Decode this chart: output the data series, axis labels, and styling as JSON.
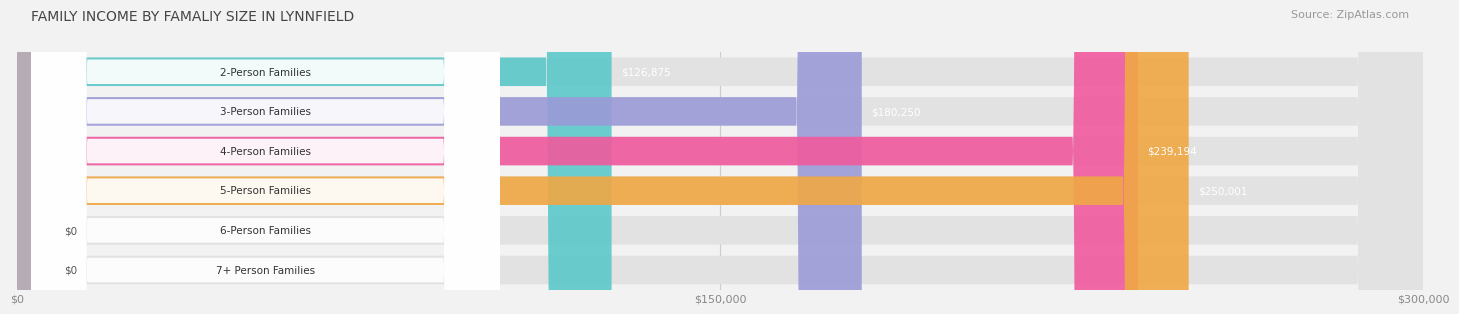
{
  "title": "FAMILY INCOME BY FAMALIY SIZE IN LYNNFIELD",
  "source": "Source: ZipAtlas.com",
  "categories": [
    "2-Person Families",
    "3-Person Families",
    "4-Person Families",
    "5-Person Families",
    "6-Person Families",
    "7+ Person Families"
  ],
  "values": [
    126875,
    180250,
    239194,
    250001,
    0,
    0
  ],
  "bar_colors": [
    "#5BC8C8",
    "#9B9BD8",
    "#F05A9E",
    "#F0A844",
    "#F09898",
    "#90B8E0"
  ],
  "value_labels": [
    "$126,875",
    "$180,250",
    "$239,194",
    "$250,001",
    "$0",
    "$0"
  ],
  "x_ticks": [
    0,
    150000,
    300000
  ],
  "x_tick_labels": [
    "$0",
    "$150,000",
    "$300,000"
  ],
  "xlim_max": 300000,
  "background_color": "#f2f2f2",
  "bar_bg_color": "#e2e2e2",
  "title_fontsize": 10,
  "source_fontsize": 8
}
